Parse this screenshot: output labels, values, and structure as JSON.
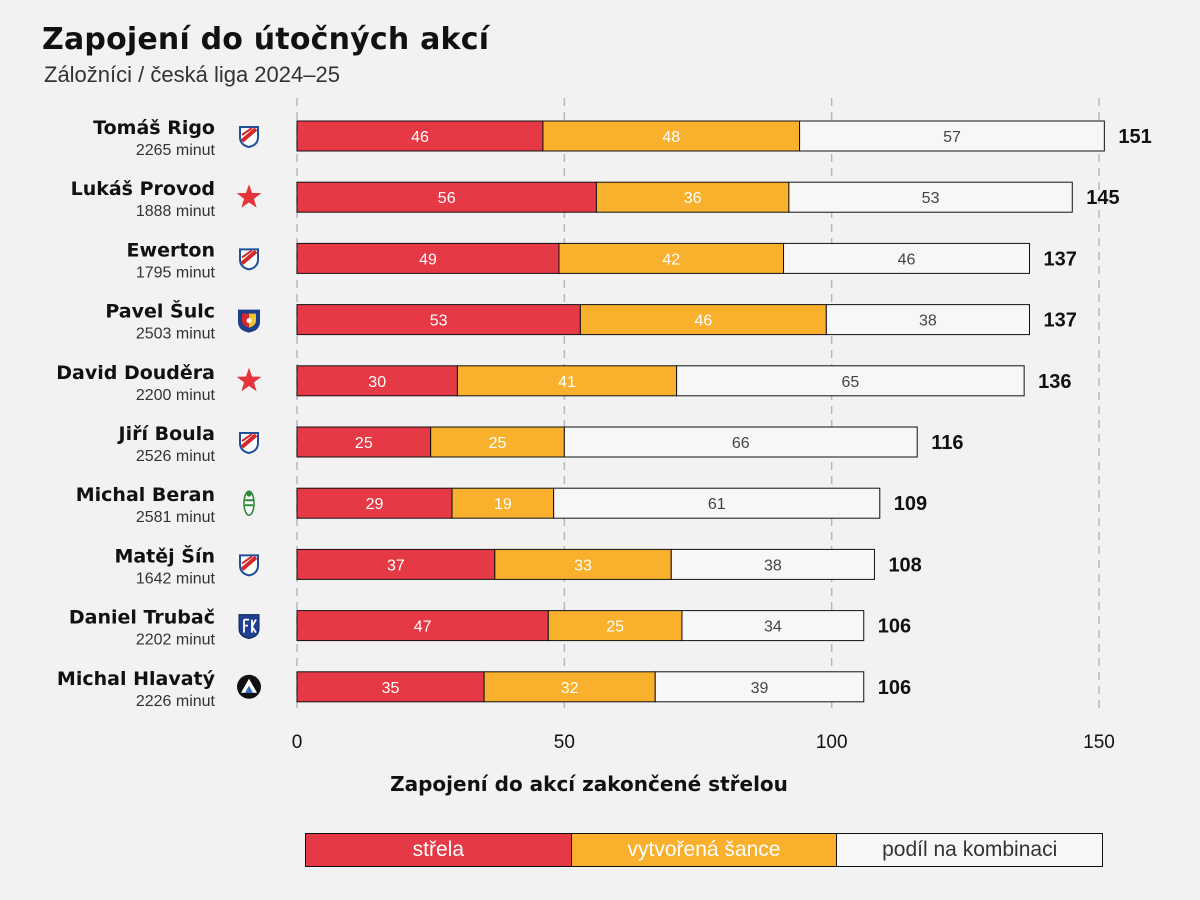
{
  "header": {
    "title": "Zapojení do útočných akcí",
    "subtitle": "Záložníci / česká liga 2024–25"
  },
  "legend": {
    "items": [
      {
        "label": "střela",
        "color": "#e63946",
        "text_color": "#ffffff"
      },
      {
        "label": "vytvořená šance",
        "color": "#f9b02d",
        "text_color": "#ffffff"
      },
      {
        "label": "podíl na kombinaci",
        "color": "#f7f7f7",
        "text_color": "#333333"
      }
    ]
  },
  "chart_data": {
    "type": "bar",
    "orientation": "horizontal",
    "stacked": true,
    "title": "Zapojení do útočných akcí",
    "subtitle": "Záložníci / česká liga 2024–25",
    "xlabel": "Zapojení do akcí zakončené střelou",
    "xlim": [
      0,
      150
    ],
    "xticks": [
      0,
      50,
      100,
      150
    ],
    "grid": "vertical dashed",
    "legend_position": "bottom",
    "categories": [
      "Tomáš Rigo",
      "Lukáš Provod",
      "Ewerton",
      "Pavel Šulc",
      "David Douděra",
      "Jiří Boula",
      "Michal Beran",
      "Matěj Šín",
      "Daniel Trubač",
      "Michal Hlavatý"
    ],
    "minutes": [
      "2265 minut",
      "1888 minut",
      "1795 minut",
      "2503 minut",
      "2200 minut",
      "2526 minut",
      "2581 minut",
      "1642 minut",
      "2202 minut",
      "2226 minut"
    ],
    "club_icons": [
      "banik-ostrava-icon",
      "slavia-star-icon",
      "banik-ostrava-icon",
      "viktoria-plzen-icon",
      "slavia-star-icon",
      "banik-ostrava-icon",
      "bohemians-icon",
      "banik-ostrava-icon",
      "fk-teplice-icon",
      "slovacko-icon"
    ],
    "series": [
      {
        "name": "střela",
        "color": "#e63946",
        "values": [
          46,
          56,
          49,
          53,
          30,
          25,
          29,
          37,
          47,
          35
        ]
      },
      {
        "name": "vytvořená šance",
        "color": "#f9b02d",
        "values": [
          48,
          36,
          42,
          46,
          41,
          25,
          19,
          33,
          25,
          32
        ]
      },
      {
        "name": "podíl na kombinaci",
        "color": "#f7f7f7",
        "values": [
          57,
          53,
          46,
          38,
          65,
          66,
          61,
          38,
          34,
          39
        ]
      }
    ],
    "totals": [
      151,
      145,
      137,
      137,
      136,
      116,
      109,
      108,
      106,
      106
    ]
  }
}
